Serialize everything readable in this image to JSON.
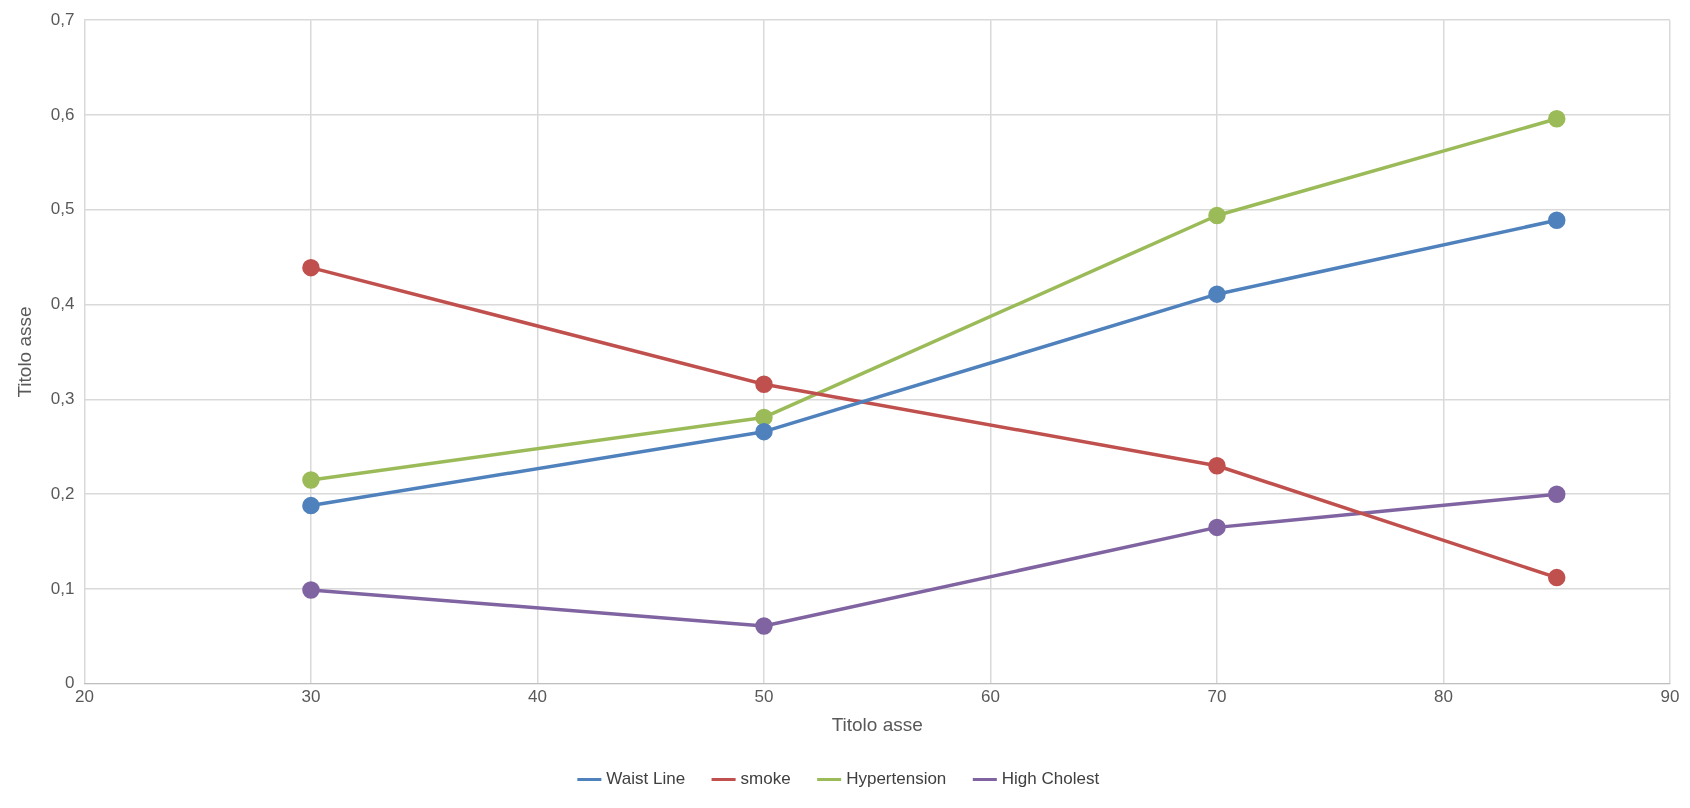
{
  "chart_data": {
    "type": "line",
    "xlabel": "Titolo asse",
    "ylabel": "Titolo asse",
    "x": [
      30,
      50,
      70,
      85
    ],
    "series": [
      {
        "name": "Waist Line",
        "color": "#4f81bd",
        "values": [
          0.188,
          0.266,
          0.411,
          0.489
        ]
      },
      {
        "name": "smoke",
        "color": "#c0504d",
        "values": [
          0.439,
          0.316,
          0.23,
          0.112
        ]
      },
      {
        "name": "Hypertension",
        "color": "#9bbb59",
        "values": [
          0.215,
          0.281,
          0.494,
          0.596
        ]
      },
      {
        "name": "High Cholest",
        "color": "#8064a2",
        "values": [
          0.099,
          0.061,
          0.165,
          0.2
        ]
      }
    ],
    "xlim": [
      20,
      90
    ],
    "xticks": [
      20,
      30,
      40,
      50,
      60,
      70,
      80,
      90
    ],
    "ylim": [
      0,
      0.7
    ],
    "yticks": [
      0,
      {
        "value": 0.1,
        "label": "0,1"
      },
      {
        "value": 0.2,
        "label": "0,2"
      },
      {
        "value": 0.3,
        "label": "0,3"
      },
      {
        "value": 0.4,
        "label": "0,4"
      },
      {
        "value": 0.5,
        "label": "0,5"
      },
      {
        "value": 0.6,
        "label": "0,6"
      },
      {
        "value": 0.7,
        "label": "0,7"
      }
    ],
    "grid": true,
    "legend": "bottom",
    "marker": "circle",
    "line_style": "solid"
  }
}
